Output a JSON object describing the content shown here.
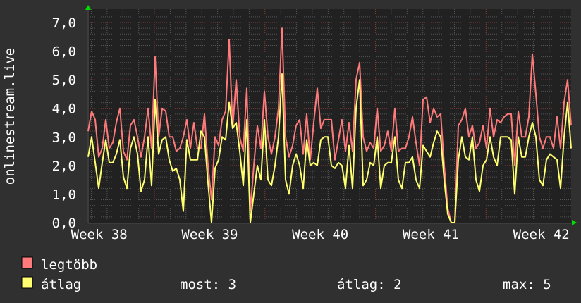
{
  "chart_data": {
    "type": "line",
    "title": "",
    "ylabel": "onlinestream.live",
    "xlabel": "",
    "xlim": [
      37.9,
      42.27
    ],
    "ylim": [
      0,
      7.4
    ],
    "grid": true,
    "y_ticks": [
      0,
      1,
      2,
      3,
      4,
      5,
      6,
      7
    ],
    "y_tick_labels": [
      "0,0",
      "1,0",
      "2,0",
      "3,0",
      "4,0",
      "5,0",
      "6,0",
      "7,0"
    ],
    "x_ticks": [
      38,
      39,
      40,
      41,
      42
    ],
    "x_tick_labels": [
      "Week 38",
      "Week 39",
      "Week 40",
      "Week 41",
      "Week 42"
    ],
    "series": [
      {
        "name": "legtöbb",
        "color": "#ff7b7b",
        "values": [
          3.2,
          3.9,
          3.6,
          2.3,
          2.6,
          3.6,
          2.6,
          2.8,
          3.5,
          4.0,
          2.5,
          2.2,
          3.4,
          3.6,
          3.0,
          2.3,
          3.0,
          4.0,
          2.6,
          5.8,
          3.0,
          4.0,
          3.9,
          3.0,
          3.0,
          2.5,
          2.6,
          3.0,
          3.6,
          2.6,
          3.5,
          2.6,
          2.6,
          3.8,
          2.0,
          0.8,
          3.0,
          2.7,
          3.6,
          3.9,
          6.4,
          3.3,
          5.0,
          3.0,
          2.5,
          4.7,
          0.4,
          2.0,
          3.4,
          2.6,
          4.6,
          3.0,
          2.4,
          3.0,
          4.0,
          6.8,
          3.0,
          2.3,
          2.7,
          3.4,
          3.6,
          2.4,
          3.8,
          2.2,
          3.5,
          4.7,
          3.3,
          3.6,
          3.6,
          3.6,
          2.2,
          2.9,
          3.6,
          2.5,
          3.5,
          2.5,
          5.0,
          5.6,
          3.0,
          2.5,
          2.8,
          2.6,
          4.0,
          2.5,
          2.7,
          3.2,
          2.5,
          4.0,
          2.5,
          2.6,
          2.6,
          3.0,
          3.7,
          2.8,
          2.0,
          4.3,
          4.4,
          3.5,
          4.0,
          3.7,
          3.8,
          2.0,
          0.5,
          0,
          0,
          3.4,
          3.6,
          4.0,
          3.0,
          3.4,
          2.6,
          2.8,
          3.4,
          2.6,
          4.0,
          3.0,
          3.6,
          3.5,
          3.7,
          3.8,
          3.8,
          2.0,
          3.9,
          3.0,
          3.0,
          3.7,
          5.9,
          4.5,
          3.0,
          2.6,
          3.0,
          3.0,
          2.6,
          3.7,
          2.6,
          4.2,
          5.0,
          3.4
        ]
      },
      {
        "name": "átlag",
        "color": "#ffff70",
        "values": [
          2.3,
          3.0,
          2.1,
          1.2,
          2.1,
          2.9,
          2.1,
          2.1,
          2.4,
          2.9,
          1.6,
          1.2,
          2.6,
          3.0,
          2.4,
          1.1,
          1.5,
          3.0,
          1.3,
          4.3,
          2.4,
          2.9,
          3.0,
          2.2,
          1.8,
          1.9,
          1.5,
          0.4,
          2.9,
          2.2,
          2.2,
          2.2,
          3.2,
          3.0,
          1.4,
          0.0,
          1.9,
          2.2,
          3.0,
          2.9,
          4.2,
          3.3,
          3.5,
          2.5,
          1.3,
          3.6,
          0.0,
          1.0,
          2.0,
          1.5,
          3.6,
          1.5,
          1.3,
          2.0,
          3.0,
          5.2,
          1.5,
          1.0,
          2.0,
          2.4,
          2.0,
          1.2,
          2.9,
          2.0,
          2.1,
          2.0,
          2.9,
          3.0,
          3.0,
          2.0,
          1.9,
          2.1,
          2.0,
          1.2,
          2.7,
          1.2,
          4.0,
          5.0,
          1.3,
          1.5,
          2.1,
          2.0,
          3.0,
          1.2,
          2.0,
          2.1,
          2.1,
          3.0,
          1.5,
          1.2,
          2.1,
          2.1,
          2.3,
          1.5,
          1.2,
          2.7,
          2.5,
          2.3,
          2.8,
          3.2,
          3.0,
          1.5,
          0.3,
          0,
          0,
          2.2,
          3.0,
          2.3,
          2.2,
          3.0,
          1.5,
          1.1,
          2.0,
          2.2,
          3.0,
          2.3,
          2.0,
          3.0,
          3.0,
          3.0,
          2.9,
          1.0,
          3.0,
          2.3,
          2.3,
          3.0,
          3.5,
          3.0,
          1.5,
          1.3,
          2.2,
          2.4,
          2.3,
          2.2,
          1.2,
          3.0,
          4.2,
          2.6
        ]
      }
    ]
  },
  "legend": {
    "items": [
      {
        "label": "legtöbb",
        "color": "#ff7b7b"
      },
      {
        "label": "átlag",
        "color": "#ffff70"
      }
    ],
    "stats": {
      "current": "most: 3",
      "average": "átlag: 2",
      "max": "max: 5"
    }
  },
  "colors": {
    "background": "#303030",
    "plot_background": "#212121",
    "minor_grid": "#555555",
    "major_grid": "#8a3a3a",
    "axis_arrow": "#00dd00"
  }
}
